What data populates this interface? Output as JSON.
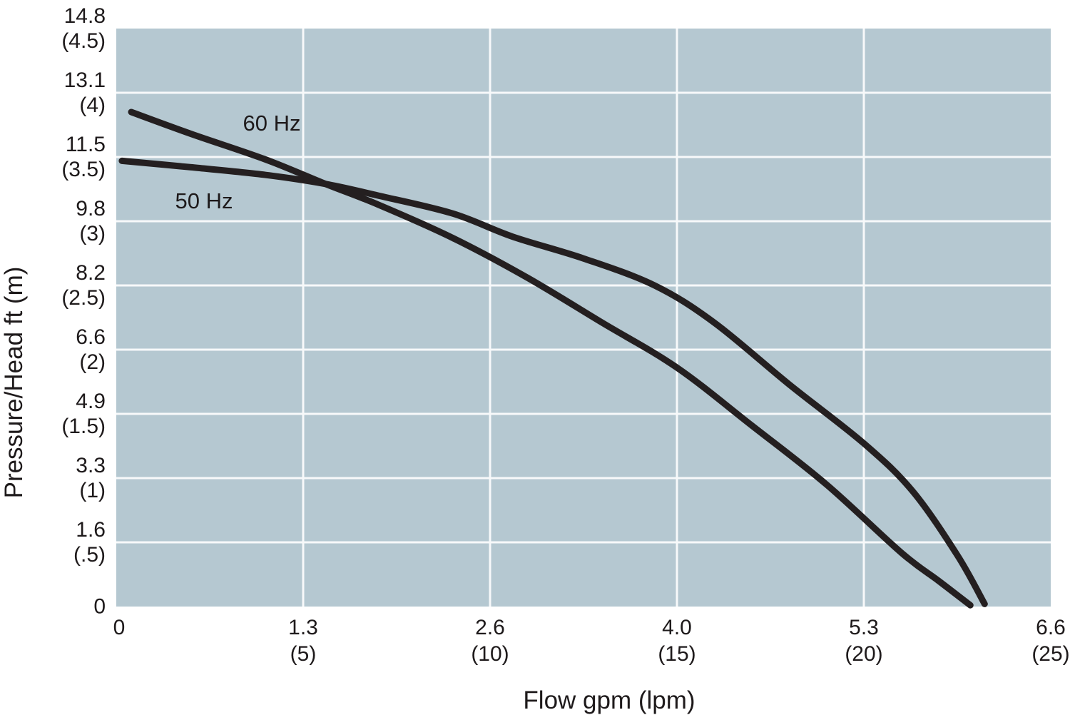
{
  "chart_data": {
    "type": "line",
    "title": "",
    "xlabel": "Flow gpm (lpm)",
    "ylabel": "Pressure/Head ft (m)",
    "grid": true,
    "legend_position": "inline-curve-labels",
    "x_axis": {
      "min_lpm": 0,
      "max_lpm": 25,
      "ticks": [
        {
          "gpm": "0",
          "lpm": "",
          "lpm_value": 0
        },
        {
          "gpm": "1.3",
          "lpm": "(5)",
          "lpm_value": 5
        },
        {
          "gpm": "2.6",
          "lpm": "(10)",
          "lpm_value": 10
        },
        {
          "gpm": "4.0",
          "lpm": "(15)",
          "lpm_value": 15
        },
        {
          "gpm": "5.3",
          "lpm": "(20)",
          "lpm_value": 20
        },
        {
          "gpm": "6.6",
          "lpm": "(25)",
          "lpm_value": 25
        }
      ]
    },
    "y_axis": {
      "min_m": 0,
      "max_m": 4.5,
      "ticks": [
        {
          "ft": "14.8",
          "m": "(4.5)",
          "m_value": 4.5
        },
        {
          "ft": "13.1",
          "m": "(4)",
          "m_value": 4
        },
        {
          "ft": "11.5",
          "m": "(3.5)",
          "m_value": 3.5
        },
        {
          "ft": "9.8",
          "m": "(3)",
          "m_value": 3
        },
        {
          "ft": "8.2",
          "m": "(2.5)",
          "m_value": 2.5
        },
        {
          "ft": "6.6",
          "m": "(2)",
          "m_value": 2
        },
        {
          "ft": "4.9",
          "m": "(1.5)",
          "m_value": 1.5
        },
        {
          "ft": "3.3",
          "m": "(1)",
          "m_value": 1
        },
        {
          "ft": "1.6",
          "m": "(.5)",
          "m_value": 0.5
        },
        {
          "ft": "0",
          "m": "",
          "m_value": 0
        }
      ]
    },
    "series": [
      {
        "name": "60 Hz",
        "shutoff_head_m": 3.85,
        "max_flow_lpm": 22.85,
        "points_lpm_m": [
          [
            0.4,
            3.85
          ],
          [
            2,
            3.68
          ],
          [
            4,
            3.48
          ],
          [
            5.6,
            3.29
          ],
          [
            7,
            3.13
          ],
          [
            9,
            2.87
          ],
          [
            11,
            2.56
          ],
          [
            13,
            2.21
          ],
          [
            15,
            1.86
          ],
          [
            17,
            1.41
          ],
          [
            19,
            0.95
          ],
          [
            21,
            0.42
          ],
          [
            22,
            0.2
          ],
          [
            22.85,
            0.01
          ]
        ]
      },
      {
        "name": "50 Hz",
        "shutoff_head_m": 3.47,
        "max_flow_lpm": 23.23,
        "points_lpm_m": [
          [
            0.15,
            3.47
          ],
          [
            2,
            3.42
          ],
          [
            4,
            3.36
          ],
          [
            5.6,
            3.29
          ],
          [
            7,
            3.2
          ],
          [
            9,
            3.06
          ],
          [
            10.6,
            2.88
          ],
          [
            12.5,
            2.71
          ],
          [
            14.4,
            2.5
          ],
          [
            16,
            2.21
          ],
          [
            18,
            1.73
          ],
          [
            20,
            1.27
          ],
          [
            21.3,
            0.9
          ],
          [
            22.5,
            0.4
          ],
          [
            23.23,
            0.02
          ]
        ]
      }
    ],
    "crossing_point_lpm_m": [
      5.6,
      3.29
    ],
    "colors": {
      "plot_background": "#b5c8d1",
      "gridline": "#f7f9fa",
      "curve": "#241f20",
      "text": "#1e1a1b"
    }
  }
}
